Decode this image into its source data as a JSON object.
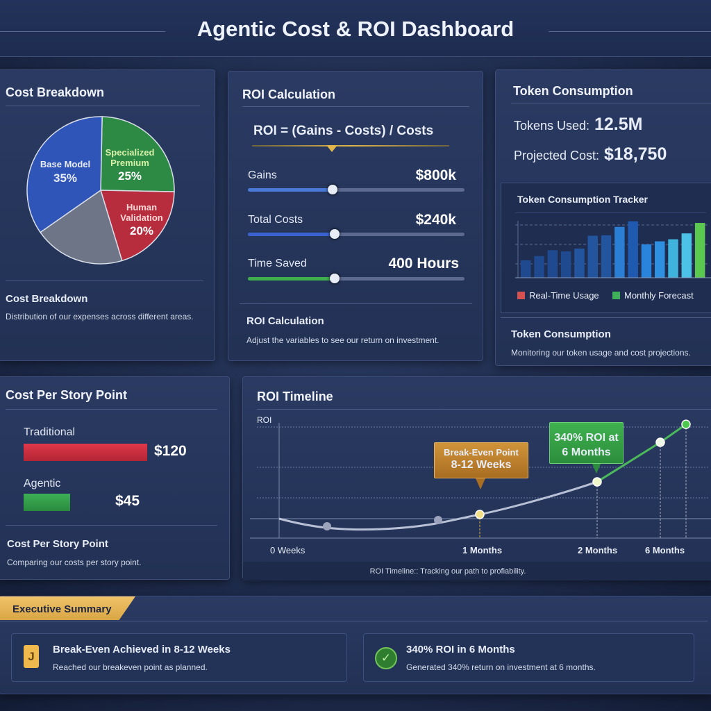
{
  "header": {
    "title": "Agentic Cost & ROI Dashboard"
  },
  "cost_breakdown": {
    "title": "Cost Breakdown",
    "footer_title": "Cost Breakdown",
    "footer_desc": "Distribution of our expenses across different areas.",
    "slices": [
      {
        "label": "Base Model",
        "pct": 35,
        "color": "#2f55b8"
      },
      {
        "label": "Specialized Premium",
        "pct": 25,
        "color": "#2c8a45"
      },
      {
        "label": "Human Validation",
        "pct": 20,
        "color": "#b82d3e"
      },
      {
        "label": "",
        "pct": 20,
        "color": "#6d7587"
      }
    ],
    "labels": {
      "base": "Base Model",
      "base_pct": "35%",
      "spec1": "Specialized",
      "spec2": "Premium",
      "spec_pct": "25%",
      "human1": "Human",
      "human2": "Validation",
      "human_pct": "20%"
    }
  },
  "roi_calc": {
    "title": "ROI Calculation",
    "formula": "ROI = (Gains - Costs) / Costs",
    "gains_label": "Gains",
    "gains_value": "$800k",
    "gains_level": 0.39,
    "costs_label": "Total Costs",
    "costs_value": "$240k",
    "costs_level": 0.4,
    "time_label": "Time Saved",
    "time_value": "400 Hours",
    "time_level": 0.4,
    "footer_title": "ROI Calculation",
    "footer_desc": "Adjust the variables to see our return on investment."
  },
  "token": {
    "title": "Token Consumption",
    "used_label": "Tokens Used:",
    "used_value": "12.5M",
    "cost_label": "Projected Cost:",
    "cost_value": "$18,750",
    "tracker_title": "Token Consumption Tracker",
    "legend_realtime": "Real-Time Usage",
    "legend_forecast": "Monthly Forecast",
    "footer_title": "Token Consumption",
    "footer_desc": "Monitoring our token usage and cost projections."
  },
  "story": {
    "title": "Cost Per Story Point",
    "traditional_label": "Traditional",
    "traditional_value": "$120",
    "traditional_amount": 120,
    "agentic_label": "Agentic",
    "agentic_value": "$45",
    "agentic_amount": 45,
    "footer_title": "Cost Per Story Point",
    "footer_desc": "Comparing our costs per story point."
  },
  "timeline": {
    "title": "ROI Timeline",
    "footer": "ROI Timeline:: Tracking our path to profiability."
  },
  "summary": {
    "title": "Executive Summary",
    "cards": [
      {
        "title": "Break-Even Achieved in 8-12 Weeks",
        "desc": "Reached our breakeven point as planned.",
        "icon": "document-icon"
      },
      {
        "title": "340% ROI in 6 Months",
        "desc": "Generated 340% return on investment at 6 months.",
        "icon": "check-badge-icon"
      }
    ]
  },
  "chart_data": [
    {
      "type": "bar",
      "title": "Token Consumption Tracker",
      "values": [
        75,
        93,
        118,
        113,
        125,
        180,
        182,
        218,
        242,
        143,
        156,
        165,
        190,
        235
      ],
      "colors": [
        "#1f4a8f",
        "#1f4a8f",
        "#1f4a8f",
        "#1f4a8f",
        "#22559e",
        "#22559e",
        "#22559e",
        "#2a7fd4",
        "#1f5ab0",
        "#2a84dc",
        "#2f8fe0",
        "#3fb3dc",
        "#4cc3e6",
        "#5bc94f"
      ],
      "legend": [
        "Real-Time Usage",
        "Monthly Forecast"
      ],
      "legend_colors": [
        "#d65050",
        "#3fb05a"
      ],
      "grid": true
    },
    {
      "type": "line",
      "title": "ROI Timeline",
      "ylabel": "ROI",
      "xticks": [
        "0 Weeks",
        "1 Months",
        "2 Months",
        "6 Months"
      ],
      "y": [
        0,
        -34,
        -6,
        19,
        164,
        340,
        420
      ],
      "annotations": [
        {
          "text1": "Break-Even Point",
          "text2": "8-12 Weeks",
          "color": "#c4862d"
        },
        {
          "text1": "340% ROI at",
          "text2": "6 Months",
          "color": "#35a448"
        }
      ],
      "grid": true
    }
  ]
}
